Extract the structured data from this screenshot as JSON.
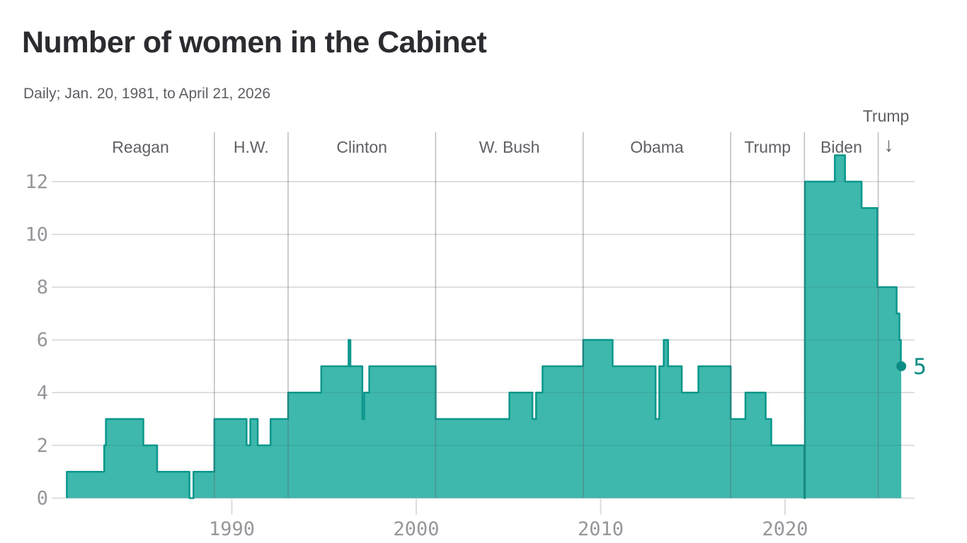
{
  "title": "Number of women in the Cabinet",
  "subtitle": "Daily; Jan. 20, 1981, to April 21, 2026",
  "colors": {
    "area_fill": "#3EB8AC",
    "area_stroke": "#0A968B",
    "accent": "#0C8C84",
    "title_text": "#2B2B30",
    "subtitle_text": "#5D5E63",
    "president_label": "#5F6065",
    "axis_label": "#96969B",
    "gridline": "#E8E8EB",
    "gridline_over_area": "rgba(40,45,55,0.10)",
    "divider": "rgba(95,95,105,0.42)",
    "tick": "#DCDCDF"
  },
  "chart_data": {
    "type": "area",
    "step": true,
    "title": "Number of women in the Cabinet",
    "subtitle": "Daily; Jan. 20, 1981, to April 21, 2026",
    "xlabel": "",
    "ylabel": "",
    "x_unit": "year (decimal)",
    "x_range": [
      1981.05,
      2026.3
    ],
    "ylim": [
      0,
      13
    ],
    "grid": "horizontal",
    "legend": "none",
    "y_ticks": [
      0,
      2,
      4,
      6,
      8,
      10,
      12
    ],
    "x_ticks": [
      1990,
      2000,
      2010,
      2020
    ],
    "series_name": "Number of women in the Cabinet",
    "steps": [
      [
        1981.05,
        1
      ],
      [
        1983.08,
        2
      ],
      [
        1983.17,
        3
      ],
      [
        1985.2,
        2
      ],
      [
        1985.95,
        1
      ],
      [
        1987.7,
        0
      ],
      [
        1987.92,
        1
      ],
      [
        1989.05,
        3
      ],
      [
        1990.8,
        2
      ],
      [
        1991.0,
        3
      ],
      [
        1991.4,
        2
      ],
      [
        1992.1,
        3
      ],
      [
        1993.05,
        4
      ],
      [
        1994.85,
        5
      ],
      [
        1996.33,
        6
      ],
      [
        1996.43,
        5
      ],
      [
        1997.08,
        3
      ],
      [
        1997.18,
        4
      ],
      [
        1997.45,
        5
      ],
      [
        2001.05,
        3
      ],
      [
        2005.05,
        4
      ],
      [
        2006.3,
        3
      ],
      [
        2006.5,
        4
      ],
      [
        2006.85,
        5
      ],
      [
        2009.05,
        6
      ],
      [
        2010.65,
        5
      ],
      [
        2012.98,
        3
      ],
      [
        2013.18,
        5
      ],
      [
        2013.42,
        6
      ],
      [
        2013.66,
        5
      ],
      [
        2014.4,
        4
      ],
      [
        2015.3,
        5
      ],
      [
        2017.05,
        3
      ],
      [
        2017.85,
        4
      ],
      [
        2018.95,
        3
      ],
      [
        2019.25,
        2
      ],
      [
        2021.04,
        0
      ],
      [
        2021.08,
        12
      ],
      [
        2022.7,
        13
      ],
      [
        2023.25,
        12
      ],
      [
        2024.15,
        11
      ],
      [
        2025.0,
        8
      ],
      [
        2026.05,
        7
      ],
      [
        2026.2,
        6
      ],
      [
        2026.28,
        5
      ]
    ],
    "end_point": {
      "x": 2026.3,
      "value": 5,
      "label": "5"
    },
    "presidents": [
      {
        "label": "Reagan",
        "start": 1981.05,
        "end": 1989.05
      },
      {
        "label": "H.W.",
        "start": 1989.05,
        "end": 1993.05
      },
      {
        "label": "Clinton",
        "start": 1993.05,
        "end": 2001.05
      },
      {
        "label": "W. Bush",
        "start": 2001.05,
        "end": 2009.05
      },
      {
        "label": "Obama",
        "start": 2009.05,
        "end": 2017.05
      },
      {
        "label": "Trump",
        "start": 2017.05,
        "end": 2021.05
      },
      {
        "label": "Biden",
        "start": 2021.05,
        "end": 2025.05
      },
      {
        "label": "Trump",
        "start": 2025.05,
        "end": 2026.3,
        "annotation": "above",
        "arrow": "↓"
      }
    ]
  }
}
